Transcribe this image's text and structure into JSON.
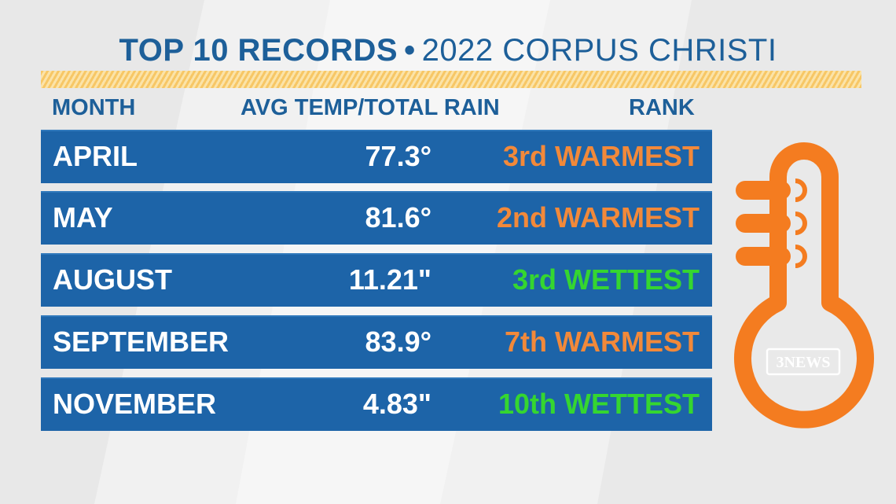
{
  "title": {
    "bold": "TOP 10 RECORDS",
    "separator": "•",
    "regular": "2022 CORPUS CHRISTI"
  },
  "headers": {
    "month": "MONTH",
    "value": "AVG TEMP/TOTAL RAIN",
    "rank": "RANK"
  },
  "rows": [
    {
      "month": "APRIL",
      "value": "77.3°",
      "rank": "3rd WARMEST",
      "type": "warm"
    },
    {
      "month": "MAY",
      "value": "81.6°",
      "rank": "2nd WARMEST",
      "type": "warm"
    },
    {
      "month": "AUGUST",
      "value": "11.21\"",
      "rank": "3rd WETTEST",
      "type": "wet"
    },
    {
      "month": "SEPTEMBER",
      "value": "83.9°",
      "rank": "7th WARMEST",
      "type": "warm"
    },
    {
      "month": "NOVEMBER",
      "value": "4.83\"",
      "rank": "10th WETTEST",
      "type": "wet"
    }
  ],
  "logo": {
    "text": "3NEWS"
  },
  "colors": {
    "navy": "#1d5f99",
    "row_blue": "#1d64a8",
    "warm": "#f2893a",
    "wet": "#35d630",
    "thermometer": "#f47c20"
  },
  "icons": {
    "thermometer": "thermometer-icon"
  }
}
